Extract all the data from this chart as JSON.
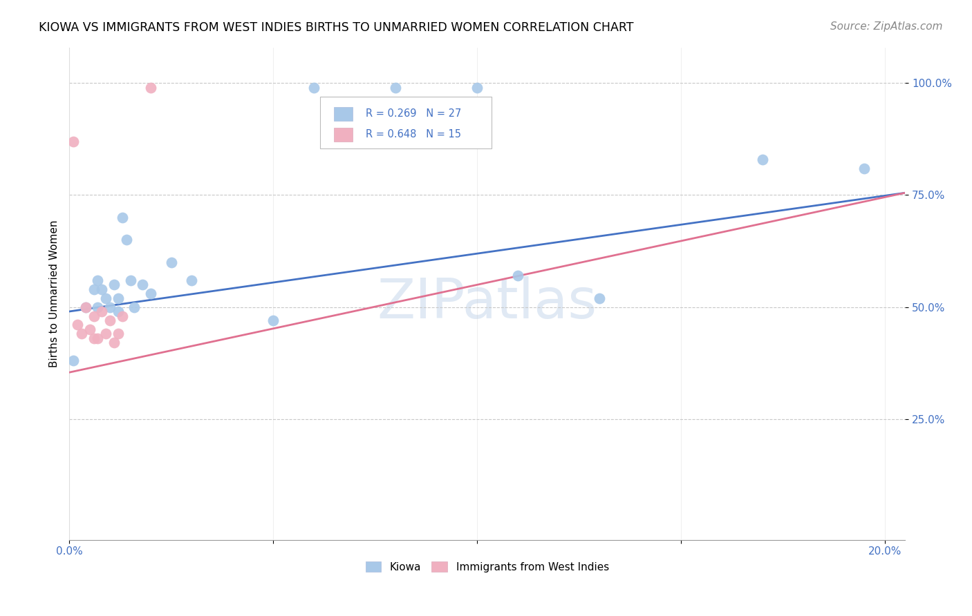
{
  "title": "KIOWA VS IMMIGRANTS FROM WEST INDIES BIRTHS TO UNMARRIED WOMEN CORRELATION CHART",
  "source": "Source: ZipAtlas.com",
  "ylabel": "Births to Unmarried Women",
  "watermark": "ZIPatlas",
  "legend_blue_r": "R = 0.269",
  "legend_blue_n": "N = 27",
  "legend_pink_r": "R = 0.648",
  "legend_pink_n": "N = 15",
  "xlim": [
    0.0,
    0.205
  ],
  "ylim": [
    -0.02,
    1.08
  ],
  "blue_scatter_x": [
    0.001,
    0.004,
    0.006,
    0.007,
    0.007,
    0.008,
    0.009,
    0.01,
    0.011,
    0.012,
    0.012,
    0.013,
    0.014,
    0.015,
    0.016,
    0.018,
    0.02,
    0.025,
    0.03,
    0.05,
    0.06,
    0.08,
    0.1,
    0.11,
    0.13,
    0.17,
    0.195
  ],
  "blue_scatter_y": [
    0.38,
    0.5,
    0.54,
    0.56,
    0.5,
    0.54,
    0.52,
    0.5,
    0.55,
    0.52,
    0.49,
    0.7,
    0.65,
    0.56,
    0.5,
    0.55,
    0.53,
    0.6,
    0.56,
    0.47,
    0.99,
    0.99,
    0.99,
    0.57,
    0.52,
    0.83,
    0.81
  ],
  "pink_scatter_x": [
    0.001,
    0.002,
    0.003,
    0.004,
    0.005,
    0.006,
    0.006,
    0.007,
    0.008,
    0.009,
    0.01,
    0.011,
    0.012,
    0.013,
    0.02
  ],
  "pink_scatter_y": [
    0.87,
    0.46,
    0.44,
    0.5,
    0.45,
    0.48,
    0.43,
    0.43,
    0.49,
    0.44,
    0.47,
    0.42,
    0.44,
    0.48,
    0.99
  ],
  "blue_line_x": [
    0.0,
    0.205
  ],
  "blue_line_y": [
    0.49,
    0.755
  ],
  "pink_line_x": [
    -0.002,
    0.205
  ],
  "pink_line_y": [
    0.35,
    0.755
  ],
  "dot_size": 130,
  "blue_color": "#A8C8E8",
  "pink_color": "#F0B0C0",
  "blue_line_color": "#4472C4",
  "pink_line_color": "#E07090",
  "grid_color": "#C8C8C8",
  "background_color": "#FFFFFF",
  "title_fontsize": 12.5,
  "axis_fontsize": 11,
  "tick_fontsize": 11,
  "source_fontsize": 11,
  "ytick_vals": [
    0.25,
    0.5,
    0.75,
    1.0
  ],
  "ytick_labels": [
    "25.0%",
    "50.0%",
    "75.0%",
    "100.0%"
  ],
  "xtick_vals": [
    0.0,
    0.05,
    0.1,
    0.15,
    0.2
  ],
  "xtick_labels": [
    "0.0%",
    "",
    "",
    "",
    "20.0%"
  ]
}
